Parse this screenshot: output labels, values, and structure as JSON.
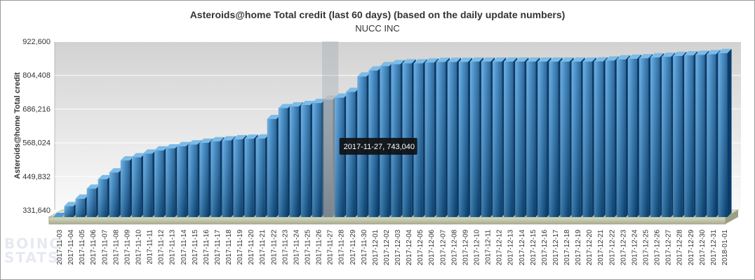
{
  "chart_data": {
    "type": "bar",
    "title": "Asteroids@home Total credit (last 60 days) (based on the daily update numbers)",
    "subtitle": "NUCC INC",
    "ylabel": "Asteroids@home Total credit",
    "xlabel": "",
    "ylim": [
      331640,
      922600
    ],
    "yticks": [
      331640,
      449832,
      568024,
      686216,
      804408,
      922600
    ],
    "ytick_labels": [
      "331,640",
      "449,832",
      "568,024",
      "686,216",
      "804,408",
      "922,600"
    ],
    "grid": true,
    "bar_color": "#1f73b3",
    "highlight_color": "#aab2bc",
    "categories": [
      "2017-11-03",
      "2017-11-04",
      "2017-11-05",
      "2017-11-06",
      "2017-11-07",
      "2017-11-08",
      "2017-11-09",
      "2017-11-10",
      "2017-11-11",
      "2017-11-12",
      "2017-11-13",
      "2017-11-14",
      "2017-11-15",
      "2017-11-16",
      "2017-11-17",
      "2017-11-18",
      "2017-11-19",
      "2017-11-20",
      "2017-11-21",
      "2017-11-22",
      "2017-11-23",
      "2017-11-24",
      "2017-11-25",
      "2017-11-26",
      "2017-11-27",
      "2017-11-28",
      "2017-11-29",
      "2017-11-30",
      "2017-12-01",
      "2017-12-02",
      "2017-12-03",
      "2017-12-04",
      "2017-12-05",
      "2017-12-06",
      "2017-12-07",
      "2017-12-08",
      "2017-12-09",
      "2017-12-10",
      "2017-12-11",
      "2017-12-12",
      "2017-12-13",
      "2017-12-14",
      "2017-12-15",
      "2017-12-16",
      "2017-12-17",
      "2017-12-18",
      "2017-12-19",
      "2017-12-20",
      "2017-12-21",
      "2017-12-22",
      "2017-12-23",
      "2017-12-24",
      "2017-12-25",
      "2017-12-26",
      "2017-12-27",
      "2017-12-28",
      "2017-12-29",
      "2017-12-30",
      "2017-12-31",
      "2018-01-01"
    ],
    "values": [
      331640,
      370000,
      396000,
      431000,
      464000,
      488000,
      530000,
      541000,
      554000,
      565000,
      572000,
      580000,
      586000,
      592000,
      597000,
      600000,
      604000,
      606000,
      607000,
      675000,
      713000,
      719000,
      724000,
      731000,
      743040,
      750000,
      770000,
      824000,
      845000,
      860000,
      867000,
      870000,
      870000,
      873000,
      875000,
      875000,
      875000,
      876000,
      876000,
      876000,
      876000,
      876000,
      876000,
      876000,
      876000,
      876000,
      876000,
      876000,
      877000,
      880000,
      884000,
      886000,
      888000,
      891000,
      893000,
      896000,
      898000,
      900000,
      902000,
      906000
    ],
    "highlight_index": 24,
    "tooltip": "2017-11-27, 743,040"
  },
  "watermark": {
    "line1": "BOINC",
    "line2": "STATS"
  }
}
